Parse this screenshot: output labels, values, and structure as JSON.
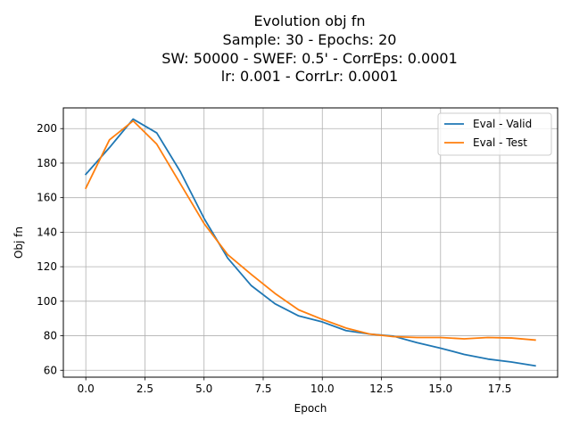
{
  "chart_data": {
    "type": "line",
    "title_lines": [
      "Evolution obj fn",
      "Sample: 30 - Epochs: 20",
      "SW: 50000 - SWEF: 0.5' - CorrEps: 0.0001",
      "lr: 0.001 - CorrLr: 0.0001"
    ],
    "xlabel": "Epoch",
    "ylabel": "Obj fn",
    "xlim": [
      -0.95,
      19.95
    ],
    "ylim": [
      56,
      212
    ],
    "xticks": [
      0.0,
      2.5,
      5.0,
      7.5,
      10.0,
      12.5,
      15.0,
      17.5
    ],
    "xtick_labels": [
      "0.0",
      "2.5",
      "5.0",
      "7.5",
      "10.0",
      "12.5",
      "15.0",
      "17.5"
    ],
    "yticks": [
      60,
      80,
      100,
      120,
      140,
      160,
      180,
      200
    ],
    "ytick_labels": [
      "60",
      "80",
      "100",
      "120",
      "140",
      "160",
      "180",
      "200"
    ],
    "grid": true,
    "legend_position": "upper right",
    "x": [
      0,
      1,
      2,
      3,
      4,
      5,
      6,
      7,
      8,
      9,
      10,
      11,
      12,
      13,
      14,
      15,
      16,
      17,
      18,
      19
    ],
    "series": [
      {
        "name": "Eval - Valid",
        "color": "#1f77b4",
        "values": [
          173.5,
          189,
          205.5,
          197.5,
          175,
          148,
          125,
          109,
          98.5,
          91.5,
          88,
          83,
          81,
          79.8,
          76,
          72.8,
          69.2,
          66.5,
          64.8,
          62.6
        ]
      },
      {
        "name": "Eval - Test",
        "color": "#ff7f0e",
        "values": [
          165.5,
          193.5,
          204.5,
          191,
          168,
          145,
          127,
          115.5,
          104.5,
          95,
          89.5,
          84.5,
          81,
          79.5,
          79,
          79,
          78.2,
          79,
          78.7,
          77.5
        ]
      }
    ]
  }
}
